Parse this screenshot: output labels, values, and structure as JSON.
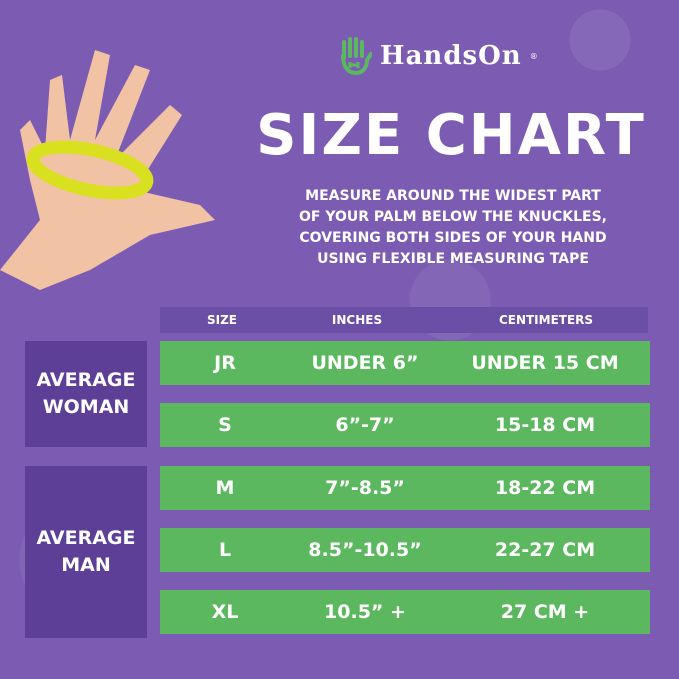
{
  "brand": {
    "name": "HandsOn",
    "registered": "®"
  },
  "title": "SIZE CHART",
  "instructions": [
    "MEASURE AROUND THE WIDEST PART",
    "OF YOUR PALM BELOW THE KNUCKLES,",
    "COVERING BOTH SIDES OF YOUR HAND",
    "USING FLEXIBLE MEASURING TAPE"
  ],
  "table": {
    "headers": [
      "SIZE",
      "INCHES",
      "CENTIMETERS"
    ],
    "groups": [
      {
        "label": "AVERAGE WOMAN"
      },
      {
        "label": "AVERAGE MAN"
      }
    ],
    "rows": [
      {
        "size": "JR",
        "inches": "UNDER 6”",
        "cm": "UNDER 15 CM"
      },
      {
        "size": "S",
        "inches": "6”-7”",
        "cm": "15-18 CM"
      },
      {
        "size": "M",
        "inches": "7”-8.5”",
        "cm": "18-22 CM"
      },
      {
        "size": "L",
        "inches": "8.5”-10.5”",
        "cm": "22-27 CM"
      },
      {
        "size": "XL",
        "inches": "10.5” +",
        "cm": "27 CM +"
      }
    ]
  },
  "colors": {
    "background": "#7b5cb2",
    "row": "#5cb85f",
    "group": "#5d3f98",
    "header": "#6b4fa6",
    "logo": "#5cb85f",
    "tape": "#d8e020"
  }
}
